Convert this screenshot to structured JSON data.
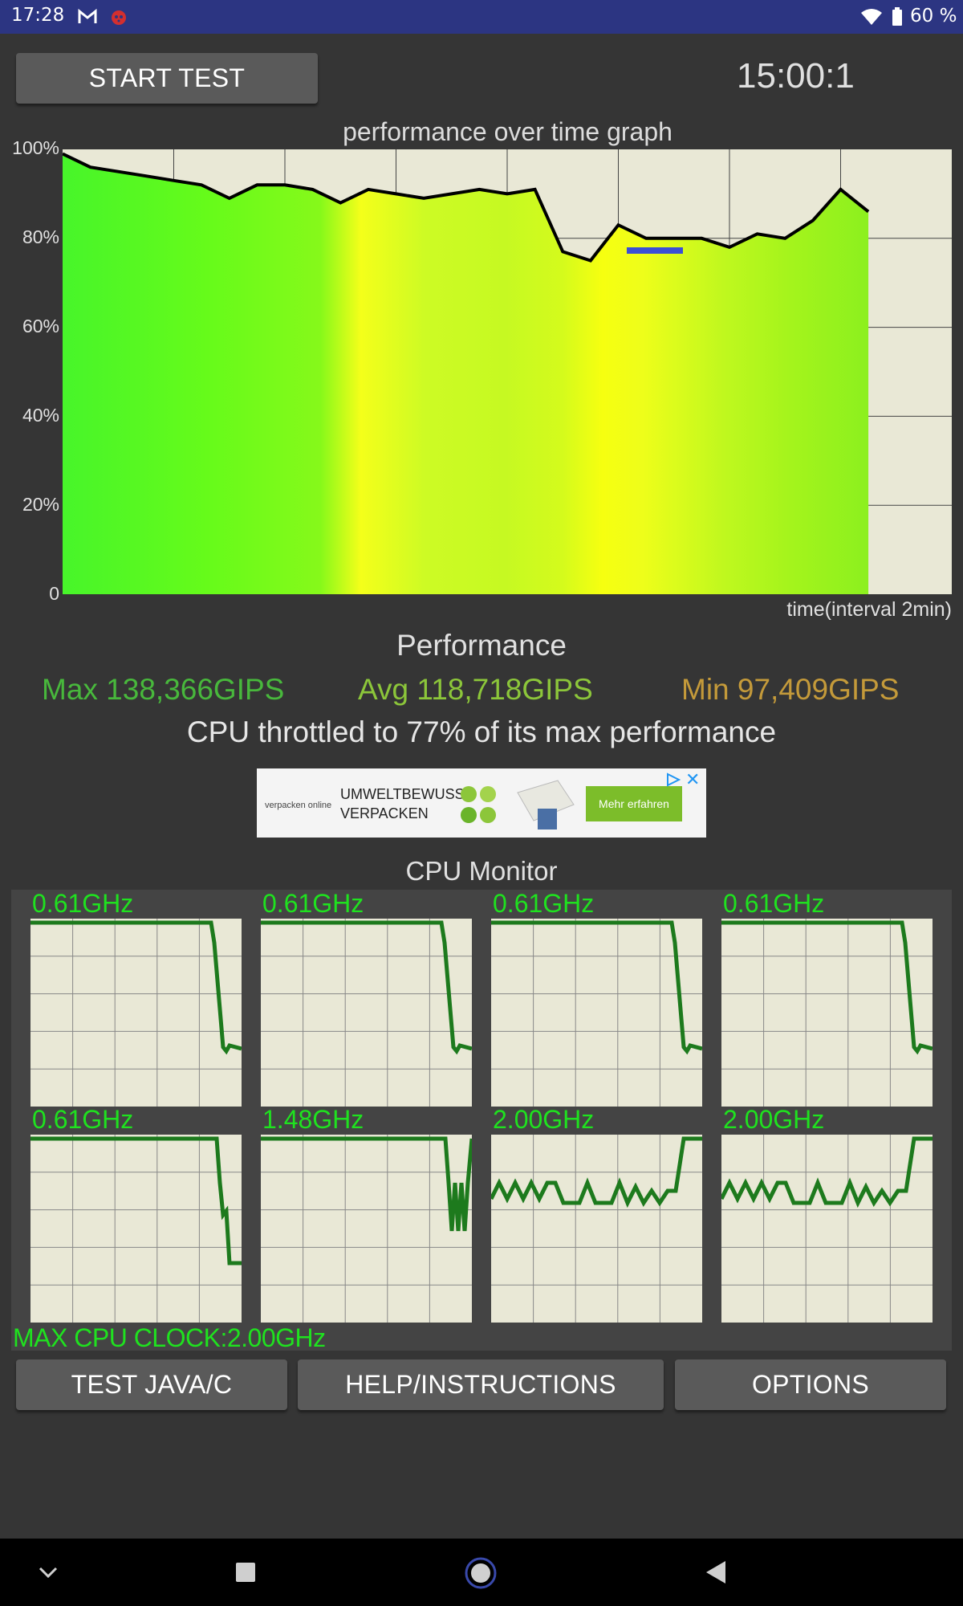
{
  "status_bar": {
    "time": "17:28",
    "battery": "60 %",
    "icons": [
      "gmail-icon",
      "bug-icon",
      "wifi-icon",
      "battery-icon"
    ]
  },
  "header": {
    "start_button": "START TEST",
    "timer": "15:00:1"
  },
  "chart_data": {
    "type": "line",
    "title": "performance over time graph",
    "xlabel": "time(interval 2min)",
    "ylabel": "",
    "y_tick_labels": [
      "100%",
      "80%",
      "60%",
      "40%",
      "20%",
      "0"
    ],
    "ylim": [
      0,
      100
    ],
    "grid": true,
    "x_interval_minutes": 2,
    "series": [
      {
        "x": [
          0,
          0.5,
          1,
          1.5,
          2,
          2.5,
          3,
          3.5,
          4,
          4.5,
          5,
          5.5,
          6,
          6.5,
          7,
          7.5,
          8,
          8.5,
          9,
          9.5,
          10,
          10.5,
          11,
          11.5,
          12,
          12.5,
          13,
          13.5,
          14,
          14.5
        ],
        "values": [
          99,
          96,
          95,
          94,
          93,
          92,
          89,
          92,
          92,
          91,
          88,
          91,
          90,
          89,
          90,
          91,
          90,
          91,
          77,
          75,
          83,
          80,
          80,
          80,
          78,
          81,
          80,
          84,
          91,
          86
        ]
      }
    ]
  },
  "performance": {
    "title": "Performance",
    "max": "Max 138,366GIPS",
    "avg": "Avg 118,718GIPS",
    "min": "Min 97,409GIPS",
    "throttled": "CPU throttled to 77% of its max performance",
    "colors": {
      "max": "#48b83c",
      "avg": "#8cc63a",
      "min": "#c49a3a"
    }
  },
  "ad": {
    "brand": "verpacken online",
    "line1": "UMWELTBEWUSST",
    "line2": "VERPACKEN",
    "cta": "Mehr erfahren",
    "close": "✕"
  },
  "cpu_monitor": {
    "title": "CPU Monitor",
    "cores": [
      {
        "freq": "0.61GHz",
        "type": "drop"
      },
      {
        "freq": "0.61GHz",
        "type": "drop"
      },
      {
        "freq": "0.61GHz",
        "type": "drop"
      },
      {
        "freq": "0.61GHz",
        "type": "drop"
      },
      {
        "freq": "0.61GHz",
        "type": "drop2"
      },
      {
        "freq": "1.48GHz",
        "type": "wobble"
      },
      {
        "freq": "2.00GHz",
        "type": "fluct"
      },
      {
        "freq": "2.00GHz",
        "type": "fluct"
      }
    ],
    "max_clock": "MAX CPU CLOCK:2.00GHz"
  },
  "bottom_buttons": {
    "test": "TEST JAVA/C",
    "help": "HELP/INSTRUCTIONS",
    "options": "OPTIONS"
  },
  "nav": {
    "icons": [
      "chevron-down-icon",
      "square-icon",
      "home-circle-icon",
      "back-triangle-icon"
    ]
  }
}
